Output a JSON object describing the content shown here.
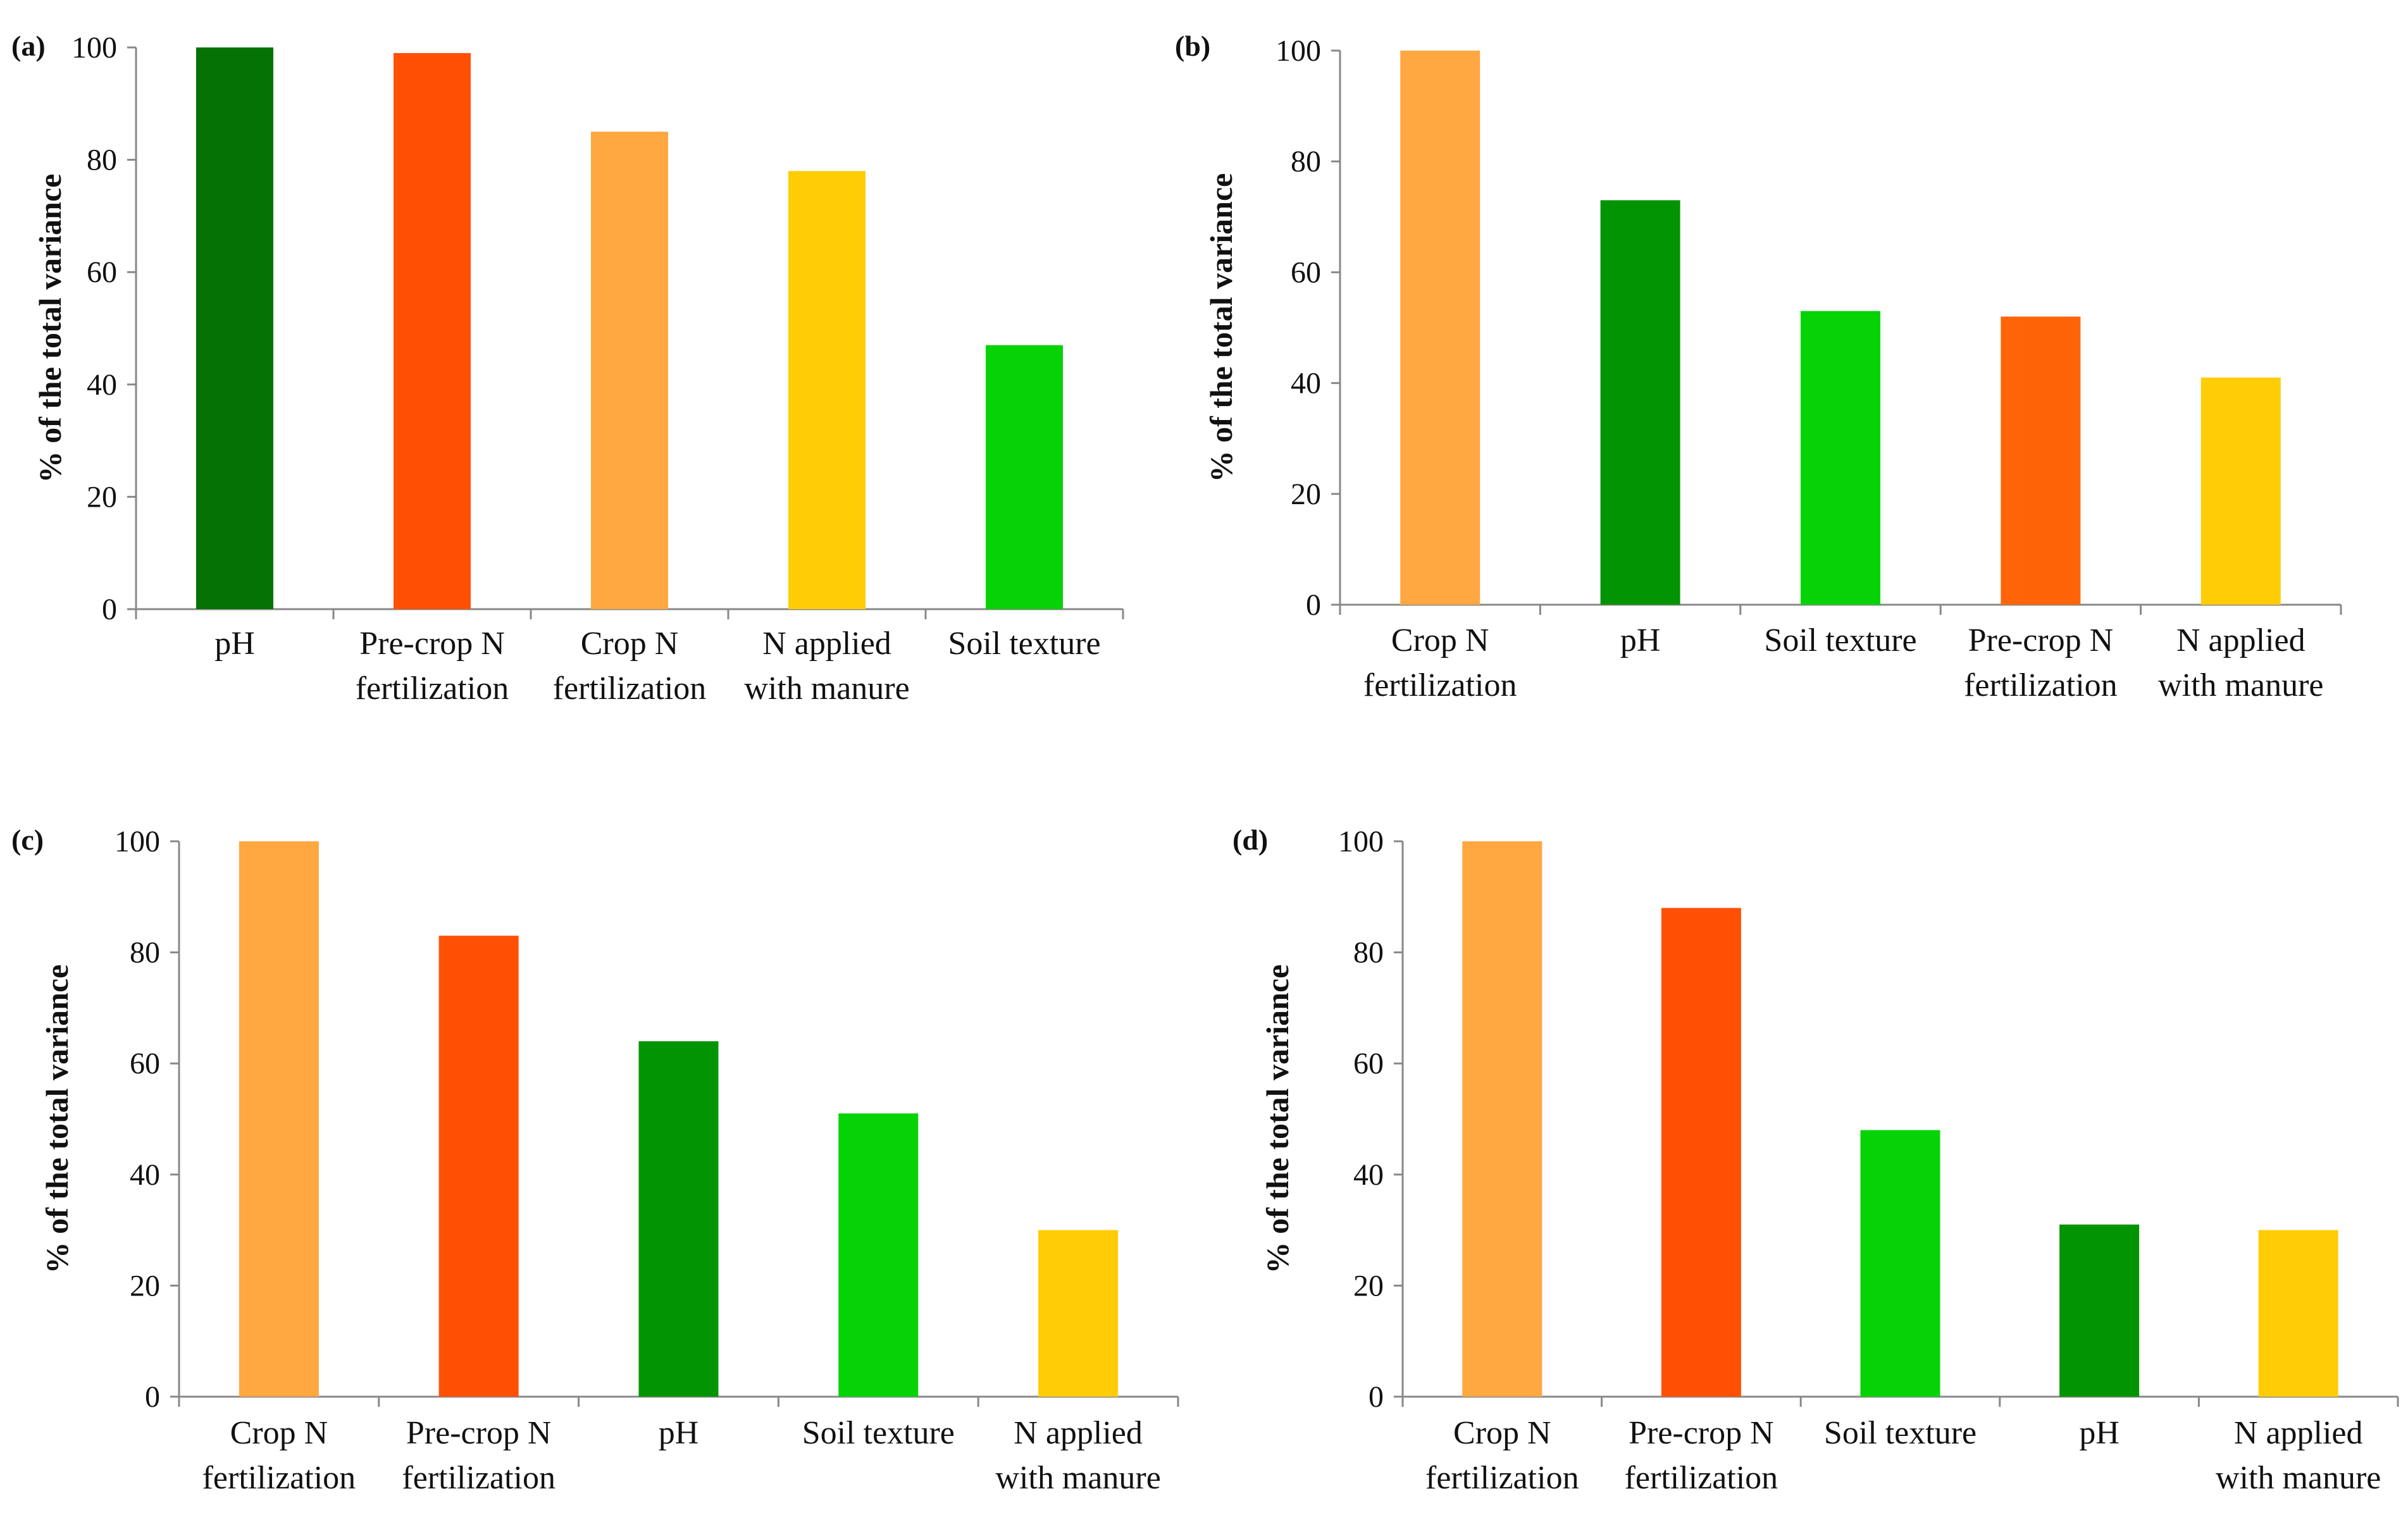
{
  "chart_data": [
    {
      "panel": "(a)",
      "type": "bar",
      "ylabel": "% of the total variance",
      "ylim": [
        0,
        100
      ],
      "yticks": [
        0,
        20,
        40,
        60,
        80,
        100
      ],
      "grid": false,
      "categories": [
        [
          "pH"
        ],
        [
          "Pre-crop N",
          "fertilization"
        ],
        [
          "Crop N",
          "fertilization"
        ],
        [
          "N applied",
          "with manure"
        ],
        [
          "Soil texture"
        ]
      ],
      "values": [
        100,
        99,
        85,
        78,
        47
      ],
      "colors": [
        "#057205",
        "#ff5005",
        "#ffa740",
        "#ffcc05",
        "#06d306"
      ]
    },
    {
      "panel": "(b)",
      "type": "bar",
      "ylabel": "% of the total variance",
      "ylim": [
        0,
        100
      ],
      "yticks": [
        0,
        20,
        40,
        60,
        80,
        100
      ],
      "grid": false,
      "categories": [
        [
          "Crop N",
          "fertilization"
        ],
        [
          "pH"
        ],
        [
          "Soil texture"
        ],
        [
          "Pre-crop N",
          "fertilization"
        ],
        [
          "N applied",
          "with manure"
        ]
      ],
      "values": [
        100,
        73,
        53,
        52,
        41
      ],
      "colors": [
        "#ffa740",
        "#039403",
        "#06d306",
        "#ff6508",
        "#ffcc05"
      ]
    },
    {
      "panel": "(c)",
      "type": "bar",
      "ylabel": "% of the total variance",
      "ylim": [
        0,
        100
      ],
      "yticks": [
        0,
        20,
        40,
        60,
        80,
        100
      ],
      "grid": false,
      "categories": [
        [
          "Crop N",
          "fertilization"
        ],
        [
          "Pre-crop N",
          "fertilization"
        ],
        [
          "pH"
        ],
        [
          "Soil texture"
        ],
        [
          "N applied",
          "with manure"
        ]
      ],
      "values": [
        100,
        83,
        64,
        51,
        30
      ],
      "colors": [
        "#ffa740",
        "#ff5005",
        "#039403",
        "#06d306",
        "#ffcc05"
      ]
    },
    {
      "panel": "(d)",
      "type": "bar",
      "ylabel": "% of the total variance",
      "ylim": [
        0,
        100
      ],
      "yticks": [
        0,
        20,
        40,
        60,
        80,
        100
      ],
      "grid": false,
      "categories": [
        [
          "Crop N",
          "fertilization"
        ],
        [
          "Pre-crop N",
          "fertilization"
        ],
        [
          "Soil texture"
        ],
        [
          "pH"
        ],
        [
          "N applied",
          "with manure"
        ]
      ],
      "values": [
        100,
        88,
        48,
        31,
        30
      ],
      "colors": [
        "#ffa740",
        "#ff5005",
        "#06d306",
        "#039403",
        "#ffcc05"
      ]
    }
  ]
}
